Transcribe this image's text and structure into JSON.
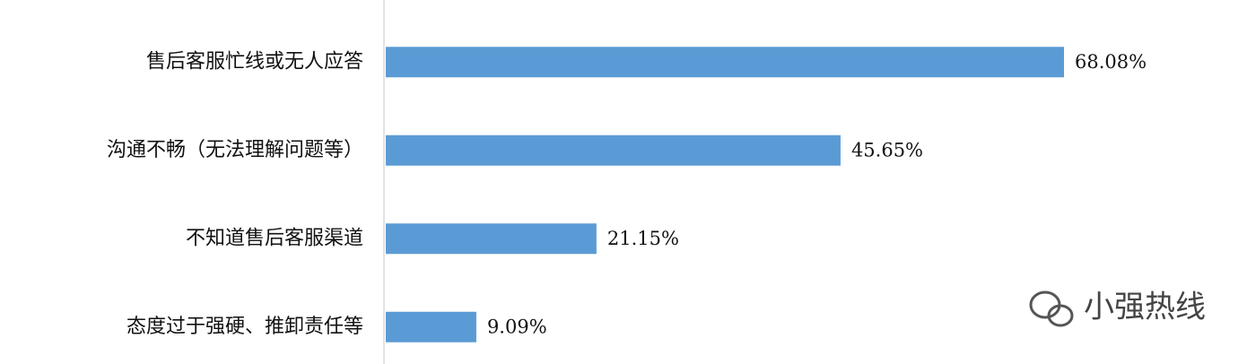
{
  "chart_data": {
    "type": "bar",
    "orientation": "horizontal",
    "categories": [
      "售后客服忙线或无人应答",
      "沟通不畅（无法理解问题等）",
      "不知道售后客服渠道",
      "态度过于强硬、推卸责任等"
    ],
    "values": [
      68.08,
      45.65,
      21.15,
      9.09
    ],
    "value_labels": [
      "68.08%",
      "45.65%",
      "21.15%",
      "9.09%"
    ],
    "color": "#5b9bd5"
  },
  "watermark": "小强热线"
}
